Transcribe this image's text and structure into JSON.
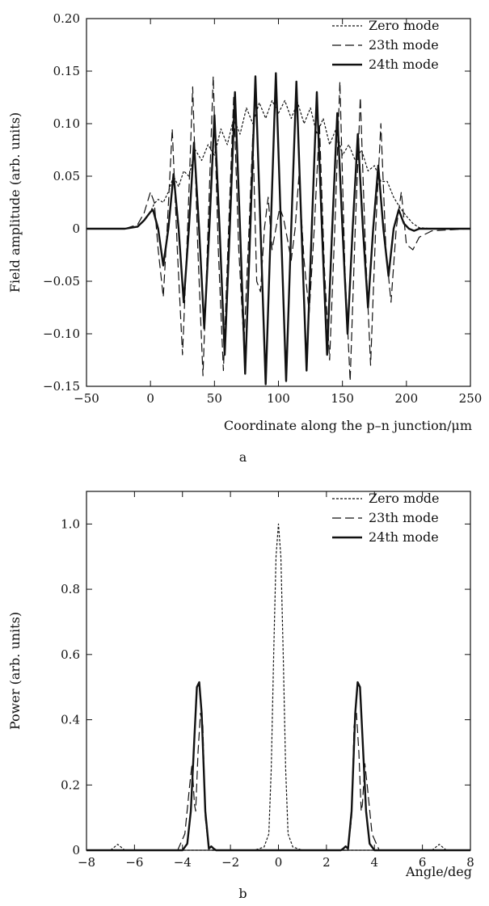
{
  "colors": {
    "ink": "#111111",
    "background": "#ffffff"
  },
  "chart_data": [
    {
      "type": "line",
      "panel_label": "a",
      "xlabel": "Coordinate along the p–n junction/μm",
      "ylabel": "Field amplitude (arb. units)",
      "xlim": [
        -50,
        250
      ],
      "ylim": [
        -0.15,
        0.2
      ],
      "xticks": [
        -50,
        0,
        50,
        100,
        150,
        200,
        250
      ],
      "xtick_labels": [
        "−50",
        "0",
        "50",
        "100",
        "150",
        "200",
        "250"
      ],
      "yticks": [
        -0.15,
        -0.1,
        -0.05,
        0,
        0.05,
        0.1,
        0.15,
        0.2
      ],
      "ytick_labels": [
        "−0.15",
        "−0.10",
        "−0.05",
        "0",
        "0.05",
        "0.10",
        "0.15",
        "0.20"
      ],
      "grid": false,
      "legend_position": "top-right",
      "series": [
        {
          "name": "Zero mode",
          "style": "dotted",
          "x": [
            -50,
            -20,
            -10,
            -5,
            0,
            3,
            6,
            10,
            14,
            18,
            22,
            26,
            30,
            35,
            40,
            45,
            50,
            55,
            60,
            65,
            70,
            75,
            80,
            85,
            90,
            95,
            100,
            105,
            110,
            115,
            120,
            125,
            130,
            135,
            140,
            145,
            150,
            155,
            160,
            165,
            170,
            175,
            180,
            185,
            190,
            195,
            200,
            205,
            210,
            220,
            250
          ],
          "y": [
            0,
            0.0,
            0.002,
            0.008,
            0.016,
            0.024,
            0.028,
            0.025,
            0.035,
            0.05,
            0.04,
            0.055,
            0.05,
            0.075,
            0.065,
            0.08,
            0.07,
            0.095,
            0.08,
            0.105,
            0.09,
            0.115,
            0.1,
            0.12,
            0.105,
            0.122,
            0.11,
            0.122,
            0.105,
            0.12,
            0.1,
            0.115,
            0.09,
            0.105,
            0.08,
            0.095,
            0.07,
            0.08,
            0.065,
            0.075,
            0.055,
            0.06,
            0.045,
            0.045,
            0.03,
            0.02,
            0.012,
            0.005,
            0.001,
            0.0,
            0
          ]
        },
        {
          "name": "23th mode",
          "style": "dashed",
          "x": [
            -50,
            -20,
            -10,
            -5,
            0,
            3,
            6,
            10,
            13,
            17,
            21,
            25,
            29,
            33,
            37,
            41,
            45,
            49,
            53,
            57,
            61,
            65,
            69,
            73,
            77,
            80,
            83,
            86,
            89,
            92,
            95,
            98,
            101,
            104,
            107,
            110,
            113,
            116,
            120,
            124,
            128,
            132,
            136,
            140,
            144,
            148,
            152,
            156,
            160,
            164,
            168,
            172,
            176,
            180,
            184,
            188,
            192,
            196,
            200,
            205,
            210,
            220,
            250
          ],
          "y": [
            0,
            0.0,
            0.004,
            0.015,
            0.035,
            0.025,
            -0.02,
            -0.065,
            0.0,
            0.095,
            -0.02,
            -0.12,
            0.0,
            0.135,
            -0.02,
            -0.14,
            0.0,
            0.145,
            -0.02,
            -0.135,
            0.0,
            0.125,
            -0.02,
            -0.11,
            0.0,
            0.09,
            -0.05,
            -0.06,
            0.0,
            0.03,
            -0.02,
            0.0,
            0.02,
            0.01,
            -0.01,
            -0.03,
            0.0,
            0.05,
            -0.03,
            -0.08,
            0.0,
            0.1,
            -0.04,
            -0.125,
            0.0,
            0.14,
            -0.04,
            -0.145,
            0.0,
            0.125,
            -0.02,
            -0.13,
            0.0,
            0.1,
            -0.02,
            -0.07,
            0.0,
            0.035,
            -0.015,
            -0.02,
            -0.008,
            -0.002,
            0
          ]
        },
        {
          "name": "24th mode",
          "style": "solid",
          "x": [
            -50,
            -20,
            -10,
            -5,
            0,
            2,
            6,
            10,
            14,
            18,
            22,
            26,
            30,
            34,
            38,
            42,
            46,
            50,
            54,
            58,
            62,
            66,
            70,
            74,
            78,
            82,
            86,
            90,
            94,
            98,
            102,
            106,
            110,
            114,
            118,
            122,
            126,
            130,
            134,
            138,
            142,
            146,
            150,
            154,
            158,
            162,
            166,
            170,
            174,
            178,
            182,
            186,
            190,
            194,
            198,
            202,
            206,
            210,
            220,
            250
          ],
          "y": [
            0,
            0.0,
            0.002,
            0.008,
            0.016,
            0.018,
            0.0,
            -0.035,
            0.0,
            0.052,
            0.0,
            -0.07,
            0.0,
            0.082,
            0.0,
            -0.095,
            0.0,
            0.108,
            0.0,
            -0.12,
            0.0,
            0.13,
            0.0,
            -0.138,
            0.0,
            0.145,
            0.0,
            -0.148,
            0.0,
            0.148,
            0.0,
            -0.145,
            0.0,
            0.14,
            0.0,
            -0.135,
            0.0,
            0.13,
            0.0,
            -0.12,
            0.0,
            0.11,
            0.0,
            -0.1,
            0.0,
            0.09,
            0.0,
            -0.075,
            0.0,
            0.06,
            0.0,
            -0.045,
            0.0,
            0.018,
            0.005,
            0.0,
            -0.002,
            0.0,
            0.0,
            0
          ]
        }
      ]
    },
    {
      "type": "line",
      "panel_label": "b",
      "xlabel": "Angle/deg",
      "ylabel": "Power (arb. units)",
      "xlim": [
        -8,
        8
      ],
      "ylim": [
        0,
        1.1
      ],
      "xticks": [
        -8,
        -6,
        -4,
        -2,
        0,
        2,
        4,
        6,
        8
      ],
      "xtick_labels": [
        "−8",
        "−6",
        "−4",
        "−2",
        "0",
        "2",
        "4",
        "6",
        "8"
      ],
      "yticks": [
        0,
        0.2,
        0.4,
        0.6,
        0.8,
        1.0
      ],
      "ytick_labels": [
        "0",
        "0.2",
        "0.4",
        "0.6",
        "0.8",
        "1.0"
      ],
      "grid": false,
      "legend_position": "top-right",
      "series": [
        {
          "name": "Zero mode",
          "style": "dotted",
          "x": [
            -8,
            -7.0,
            -6.8,
            -6.7,
            -6.6,
            -6.4,
            -6.0,
            -1.0,
            -0.6,
            -0.4,
            -0.3,
            -0.2,
            -0.1,
            0.0,
            0.1,
            0.2,
            0.3,
            0.4,
            0.6,
            1.0,
            6.0,
            6.4,
            6.6,
            6.7,
            6.8,
            7.0,
            8
          ],
          "y": [
            0,
            0,
            0.012,
            0.018,
            0.012,
            0,
            0,
            0,
            0.01,
            0.05,
            0.25,
            0.6,
            0.9,
            1.0,
            0.9,
            0.6,
            0.25,
            0.05,
            0.01,
            0,
            0,
            0,
            0.012,
            0.018,
            0.012,
            0,
            0
          ]
        },
        {
          "name": "23th mode",
          "style": "dashed",
          "x": [
            -8,
            -4.2,
            -3.9,
            -3.7,
            -3.6,
            -3.5,
            -3.45,
            -3.35,
            -3.25,
            -3.15,
            -3.05,
            -2.9,
            -2.7,
            2.7,
            2.9,
            3.05,
            3.15,
            3.25,
            3.35,
            3.45,
            3.5,
            3.6,
            3.7,
            3.9,
            4.2,
            8
          ],
          "y": [
            0,
            0,
            0.05,
            0.2,
            0.265,
            0.14,
            0.12,
            0.3,
            0.42,
            0.38,
            0.1,
            0,
            0,
            0,
            0,
            0.1,
            0.38,
            0.42,
            0.3,
            0.12,
            0.14,
            0.265,
            0.2,
            0.05,
            0,
            0
          ]
        },
        {
          "name": "24th mode",
          "style": "solid",
          "x": [
            -8,
            -4.0,
            -3.8,
            -3.65,
            -3.5,
            -3.4,
            -3.3,
            -3.2,
            -3.05,
            -2.9,
            -2.8,
            -2.7,
            -2.6,
            2.6,
            2.7,
            2.8,
            2.9,
            3.05,
            3.2,
            3.3,
            3.4,
            3.5,
            3.65,
            3.8,
            4.0,
            8
          ],
          "y": [
            0,
            0,
            0.02,
            0.12,
            0.35,
            0.5,
            0.515,
            0.42,
            0.12,
            0.005,
            0.012,
            0.005,
            0,
            0,
            0.005,
            0.012,
            0.005,
            0.12,
            0.42,
            0.515,
            0.5,
            0.35,
            0.12,
            0.02,
            0,
            0
          ]
        }
      ]
    }
  ]
}
